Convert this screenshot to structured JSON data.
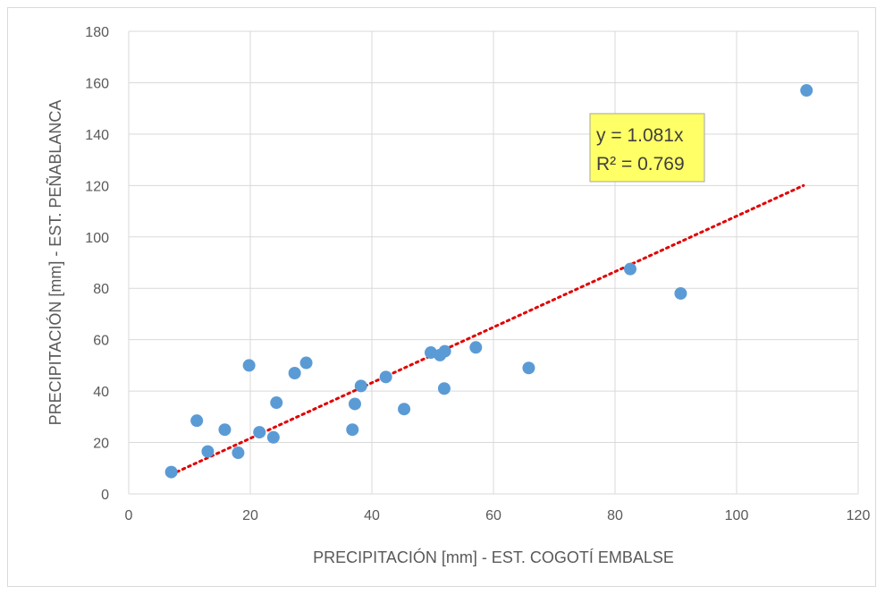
{
  "chart_data": {
    "type": "scatter",
    "title": "",
    "xlabel": "PRECIPITACIÓN [mm] - EST. COGOTÍ EMBALSE",
    "ylabel": "PRECIPITACIÓN [mm] - EST. PEÑABLANCA",
    "xlim": [
      0,
      120
    ],
    "ylim": [
      0,
      180
    ],
    "xticks": [
      "0",
      "20",
      "40",
      "60",
      "80",
      "100",
      "120"
    ],
    "yticks": [
      "0",
      "20",
      "40",
      "60",
      "80",
      "100",
      "120",
      "140",
      "160",
      "180"
    ],
    "grid": "horizontal and vertical",
    "colors": {
      "points": "#5b9bd5",
      "trendline": "#e00000",
      "label_bg": "#ffff66",
      "label_border": "#a6a6a6"
    },
    "points": [
      {
        "x": 7.0,
        "y": 8.5
      },
      {
        "x": 11.2,
        "y": 28.5
      },
      {
        "x": 13.0,
        "y": 16.5
      },
      {
        "x": 15.8,
        "y": 25.0
      },
      {
        "x": 18.0,
        "y": 16.0
      },
      {
        "x": 19.8,
        "y": 50.0
      },
      {
        "x": 21.5,
        "y": 24.0
      },
      {
        "x": 23.8,
        "y": 22.0
      },
      {
        "x": 24.3,
        "y": 35.5
      },
      {
        "x": 27.3,
        "y": 47.0
      },
      {
        "x": 29.2,
        "y": 51.0
      },
      {
        "x": 36.8,
        "y": 25.0
      },
      {
        "x": 37.2,
        "y": 35.0
      },
      {
        "x": 38.2,
        "y": 42.0
      },
      {
        "x": 42.3,
        "y": 45.5
      },
      {
        "x": 45.3,
        "y": 33.0
      },
      {
        "x": 49.7,
        "y": 55.0
      },
      {
        "x": 51.2,
        "y": 54.0
      },
      {
        "x": 52.0,
        "y": 55.5
      },
      {
        "x": 51.9,
        "y": 41.0
      },
      {
        "x": 57.1,
        "y": 57.0
      },
      {
        "x": 65.8,
        "y": 49.0
      },
      {
        "x": 82.5,
        "y": 87.5
      },
      {
        "x": 90.8,
        "y": 78.0
      },
      {
        "x": 111.5,
        "y": 157.0
      }
    ],
    "trendline": {
      "type": "linear",
      "slope": 1.081,
      "intercept": 0,
      "x_range": [
        7.0,
        111.0
      ],
      "equation": "y = 1.081x",
      "r_squared": "R² = 0.769"
    }
  }
}
